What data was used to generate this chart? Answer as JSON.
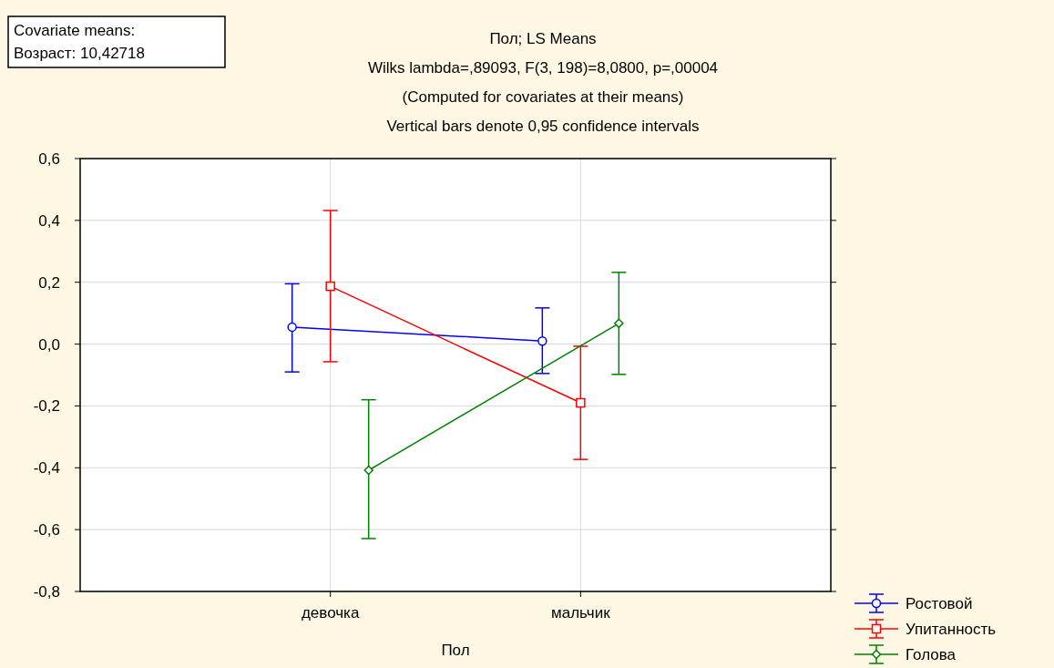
{
  "chart_data": {
    "type": "line",
    "title": "Пол; LS Means",
    "subtitle": "Wilks lambda=,89093, F(3, 198)=8,0800, p=,00004",
    "annotations": [
      "(Computed for covariates at their means)",
      "Vertical bars denote 0,95 confidence intervals",
      "Covariate means:",
      "Возраст: 10,42718"
    ],
    "xlabel": "Пол",
    "categories": [
      "девочка",
      "мальчик"
    ],
    "ylim": [
      -0.8,
      0.6
    ],
    "yticks": [
      {
        "value": -0.8,
        "label": "-0,8"
      },
      {
        "value": -0.6,
        "label": "-0,6"
      },
      {
        "value": -0.4,
        "label": "-0,4"
      },
      {
        "value": -0.2,
        "label": "-0,2"
      },
      {
        "value": 0,
        "label": "0,0"
      },
      {
        "value": 0.2,
        "label": "0,2"
      },
      {
        "value": 0.4,
        "label": "0,4"
      },
      {
        "value": 0.6,
        "label": "0,6"
      }
    ],
    "grid": true,
    "legend": "bottom right",
    "line_style": "solid",
    "series": [
      {
        "name": "Ростовой",
        "color": "#0000ff",
        "marker": "circle",
        "values": [
          0.055,
          0.01
        ],
        "errors": [
          [
            -0.09,
            0.195
          ],
          [
            -0.095,
            0.117
          ]
        ]
      },
      {
        "name": "Упитанность",
        "color": "#ff0000",
        "marker": "square",
        "values": [
          0.187,
          -0.19
        ],
        "errors": [
          [
            -0.057,
            0.432
          ],
          [
            -0.373,
            -0.007
          ]
        ]
      },
      {
        "name": "Голова",
        "color": "#008000",
        "marker": "diamond",
        "values": [
          -0.408,
          0.067
        ],
        "errors": [
          [
            -0.629,
            -0.18
          ],
          [
            -0.098,
            0.232
          ]
        ]
      }
    ]
  }
}
